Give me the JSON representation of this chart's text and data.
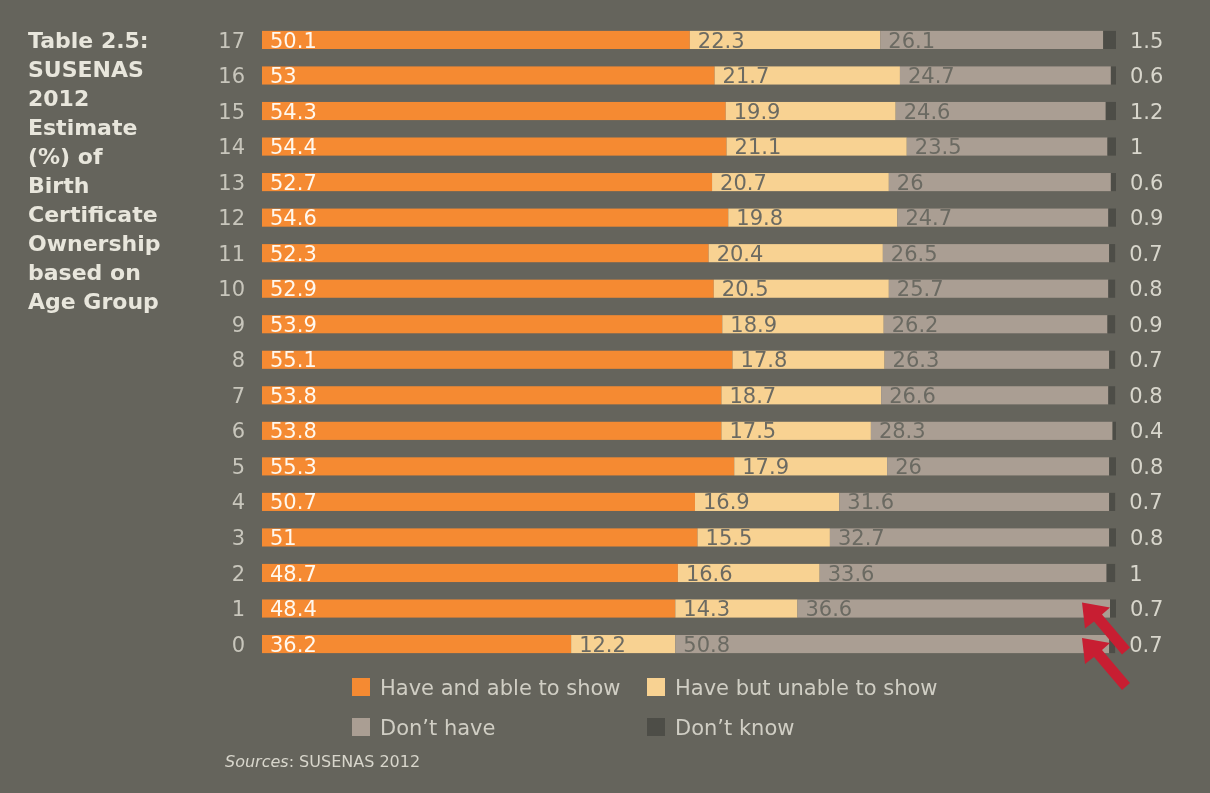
{
  "chart_data": {
    "type": "bar",
    "orientation": "horizontal",
    "stacked": true,
    "data_labels": true,
    "legend": "bottom",
    "title": "Table 2.5: SUSENAS 2012 Estimate (%) of Birth Certificate Ownership based on Age Group",
    "annotations": [
      "Sources: SUSENAS 2012"
    ],
    "categories": [
      "17",
      "16",
      "15",
      "14",
      "13",
      "12",
      "11",
      "10",
      "9",
      "8",
      "7",
      "6",
      "5",
      "4",
      "3",
      "2",
      "1",
      "0"
    ],
    "series": [
      {
        "name": "Have and able to show",
        "color": "#f58a32",
        "values": [
          50.1,
          53,
          54.3,
          54.4,
          52.7,
          54.6,
          52.3,
          52.9,
          53.9,
          55.1,
          53.8,
          53.8,
          55.3,
          50.7,
          51,
          48.7,
          48.4,
          36.2
        ]
      },
      {
        "name": "Have but unable to show",
        "color": "#f8d292",
        "values": [
          22.3,
          21.7,
          19.9,
          21.1,
          20.7,
          19.8,
          20.4,
          20.5,
          18.9,
          17.8,
          18.7,
          17.5,
          17.9,
          16.9,
          15.5,
          16.6,
          14.3,
          12.2
        ]
      },
      {
        "name": "Don’t have",
        "color": "#aa9e93",
        "values": [
          26.1,
          24.7,
          24.6,
          23.5,
          26,
          24.7,
          26.5,
          25.7,
          26.2,
          26.3,
          26.6,
          28.3,
          26,
          31.6,
          32.7,
          33.6,
          36.6,
          50.8
        ]
      },
      {
        "name": "Don’t know",
        "color": "#4d4d47",
        "values": [
          1.5,
          0.6,
          1.2,
          1,
          0.6,
          0.9,
          0.7,
          0.8,
          0.9,
          0.7,
          0.8,
          0.4,
          0.8,
          0.7,
          0.8,
          1,
          0.7,
          0.7
        ]
      }
    ]
  }
}
